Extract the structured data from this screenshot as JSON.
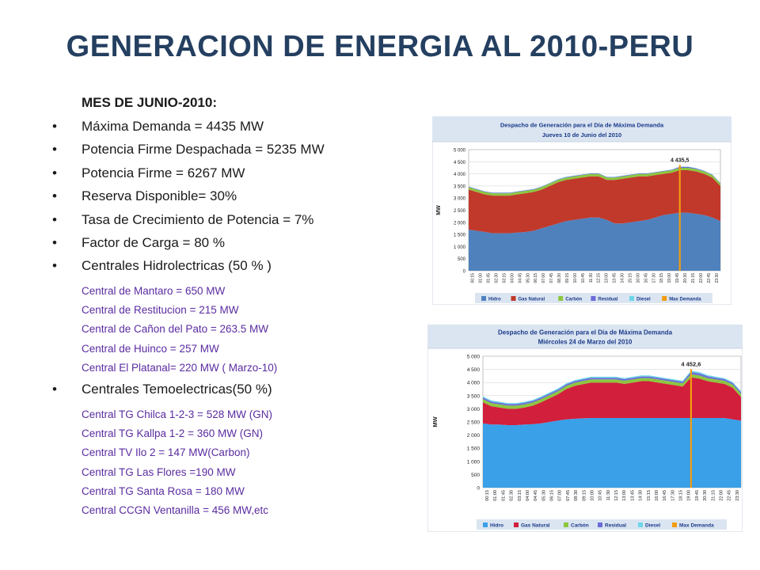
{
  "slide": {
    "title": "GENERACION DE ENERGIA AL 2010-PERU",
    "subtitle": "MES DE JUNIO-2010:",
    "bullets": [
      "Máxima Demanda = 4435 MW",
      "Potencia Firme Despachada = 5235 MW",
      "Potencia Firme = 6267 MW",
      "Reserva Disponible= 30%",
      "Tasa de Crecimiento de Potencia = 7%",
      "Factor de Carga = 80 %",
      "Centrales Hidrolectricas (50 % )"
    ],
    "hydro_plants": [
      "Central de Mantaro = 650 MW",
      "Central de Restitucion = 215 MW",
      "Central de Cañon del Pato = 263.5 MW",
      "Central de Huinco = 257 MW",
      "Central El Platanal= 220 MW ( Marzo-10)"
    ],
    "thermal_bullet": "Centrales Temoelectricas(50 %)",
    "thermal_plants": [
      "Central  TG Chilca 1-2-3 = 528 MW (GN)",
      "Central  TG Kallpa 1-2 = 360 MW (GN)",
      "Central TV Ilo 2 = 147 MW(Carbon)",
      "Central TG Las Flores =190 MW",
      "Central TG Santa Rosa = 180 MW",
      "Central CCGN  Ventanilla = 456 MW,etc"
    ]
  },
  "colors": {
    "title": "#243f60",
    "sub_text": "#5a2ca0",
    "hidro_1": "#4f81bd",
    "hidro_2": "#3aa0e8",
    "gas_1": "#c0392b",
    "gas_2": "#d21f3c",
    "carbon": "#8dc63f",
    "residual": "#6a6ad8",
    "diesel": "#6cd6e8",
    "max": "#f39c12"
  },
  "chart_data": [
    {
      "type": "area",
      "title": "Despacho de Generación para el Día de Máxima Demanda",
      "subtitle": "Jueves 10 de Junio del 2010",
      "ylabel": "MW",
      "ylim": [
        0,
        5000
      ],
      "yticks": [
        "0",
        "500",
        "1 000",
        "1 500",
        "2 000",
        "2 500",
        "3 000",
        "3 500",
        "4 000",
        "4 500",
        "5 000"
      ],
      "xticks": [
        "00:15",
        "01:00",
        "01:45",
        "02:30",
        "03:15",
        "04:00",
        "04:45",
        "05:30",
        "06:15",
        "07:00",
        "07:45",
        "08:30",
        "09:15",
        "10:00",
        "10:45",
        "11:30",
        "12:15",
        "13:00",
        "13:45",
        "14:30",
        "15:15",
        "16:00",
        "16:45",
        "17:30",
        "18:15",
        "19:00",
        "19:45",
        "20:30",
        "21:15",
        "22:00",
        "22:45",
        "23:30"
      ],
      "max_label": "4 435,5",
      "max_index": 26,
      "legend": [
        "Hidro",
        "Gas Natural",
        "Carbón",
        "Residual",
        "Diesel",
        "Max Demanda"
      ],
      "series": [
        {
          "name": "Hidro",
          "values": [
            1700,
            1650,
            1600,
            1550,
            1550,
            1550,
            1580,
            1600,
            1650,
            1750,
            1850,
            1950,
            2050,
            2100,
            2150,
            2200,
            2200,
            2100,
            1950,
            1950,
            2000,
            2050,
            2100,
            2200,
            2300,
            2350,
            2400,
            2400,
            2350,
            2300,
            2200,
            2050
          ]
        },
        {
          "name": "Gas Natural",
          "values": [
            1650,
            1600,
            1550,
            1550,
            1550,
            1550,
            1570,
            1600,
            1600,
            1600,
            1650,
            1700,
            1700,
            1700,
            1700,
            1700,
            1700,
            1650,
            1800,
            1850,
            1850,
            1850,
            1800,
            1750,
            1700,
            1700,
            1750,
            1750,
            1750,
            1700,
            1650,
            1450
          ]
        },
        {
          "name": "Carbón",
          "values": [
            100,
            100,
            100,
            100,
            100,
            100,
            100,
            100,
            100,
            100,
            100,
            100,
            100,
            100,
            100,
            100,
            100,
            100,
            100,
            100,
            100,
            100,
            100,
            100,
            100,
            100,
            100,
            100,
            100,
            100,
            100,
            100
          ]
        },
        {
          "name": "Residual",
          "values": [
            20,
            20,
            20,
            20,
            20,
            20,
            20,
            20,
            20,
            20,
            20,
            20,
            20,
            20,
            20,
            20,
            20,
            20,
            20,
            20,
            20,
            20,
            20,
            20,
            20,
            20,
            40,
            40,
            30,
            20,
            20,
            20
          ]
        },
        {
          "name": "Diesel",
          "values": [
            10,
            10,
            10,
            10,
            10,
            10,
            10,
            10,
            10,
            10,
            10,
            10,
            10,
            10,
            10,
            10,
            10,
            10,
            10,
            10,
            10,
            10,
            10,
            10,
            10,
            10,
            10,
            10,
            10,
            10,
            10,
            10
          ]
        }
      ]
    },
    {
      "type": "area",
      "title": "Despacho de Generación para el Día de Máxima Demanda",
      "subtitle": "Miércoles 24 de Marzo del 2010",
      "ylabel": "MW",
      "ylim": [
        0,
        5000
      ],
      "yticks": [
        "0",
        "500",
        "1 000",
        "1 500",
        "2 000",
        "2 500",
        "3 000",
        "3 500",
        "4 000",
        "4 500",
        "5 000"
      ],
      "xticks": [
        "00:15",
        "01:00",
        "01:45",
        "02:30",
        "03:15",
        "04:00",
        "04:45",
        "05:30",
        "06:15",
        "07:00",
        "07:45",
        "08:30",
        "09:15",
        "10:00",
        "10:45",
        "11:30",
        "12:15",
        "13:00",
        "13:45",
        "14:30",
        "15:15",
        "16:00",
        "16:45",
        "17:30",
        "18:15",
        "19:00",
        "19:45",
        "20:30",
        "21:15",
        "22:00",
        "22:45",
        "23:30"
      ],
      "max_label": "4 452,6",
      "max_index": 25,
      "legend": [
        "Hidro",
        "Gas Natural",
        "Carbón",
        "Residual",
        "Diesel",
        "Max Demanda"
      ],
      "series": [
        {
          "name": "Hidro",
          "values": [
            2450,
            2400,
            2400,
            2380,
            2380,
            2400,
            2420,
            2450,
            2500,
            2550,
            2600,
            2620,
            2640,
            2650,
            2650,
            2650,
            2650,
            2650,
            2650,
            2650,
            2650,
            2650,
            2650,
            2650,
            2650,
            2650,
            2650,
            2650,
            2650,
            2650,
            2600,
            2550
          ]
        },
        {
          "name": "Gas Natural",
          "values": [
            800,
            700,
            650,
            620,
            620,
            650,
            700,
            800,
            900,
            1000,
            1150,
            1250,
            1300,
            1350,
            1350,
            1350,
            1350,
            1300,
            1350,
            1400,
            1400,
            1350,
            1300,
            1250,
            1200,
            1550,
            1500,
            1400,
            1350,
            1300,
            1200,
            900
          ]
        },
        {
          "name": "Carbón",
          "values": [
            120,
            120,
            120,
            120,
            120,
            120,
            120,
            120,
            120,
            120,
            120,
            120,
            120,
            120,
            120,
            120,
            120,
            120,
            120,
            120,
            120,
            120,
            120,
            120,
            120,
            120,
            120,
            120,
            120,
            120,
            120,
            120
          ]
        },
        {
          "name": "Residual",
          "values": [
            60,
            60,
            60,
            60,
            60,
            60,
            60,
            60,
            60,
            60,
            60,
            60,
            60,
            60,
            60,
            60,
            60,
            60,
            60,
            60,
            60,
            60,
            60,
            60,
            60,
            80,
            80,
            70,
            60,
            60,
            60,
            60
          ]
        },
        {
          "name": "Diesel",
          "values": [
            40,
            40,
            40,
            40,
            40,
            40,
            40,
            40,
            40,
            40,
            40,
            40,
            40,
            40,
            40,
            40,
            40,
            40,
            40,
            40,
            40,
            40,
            40,
            40,
            40,
            50,
            50,
            40,
            40,
            40,
            40,
            40
          ]
        }
      ]
    }
  ]
}
